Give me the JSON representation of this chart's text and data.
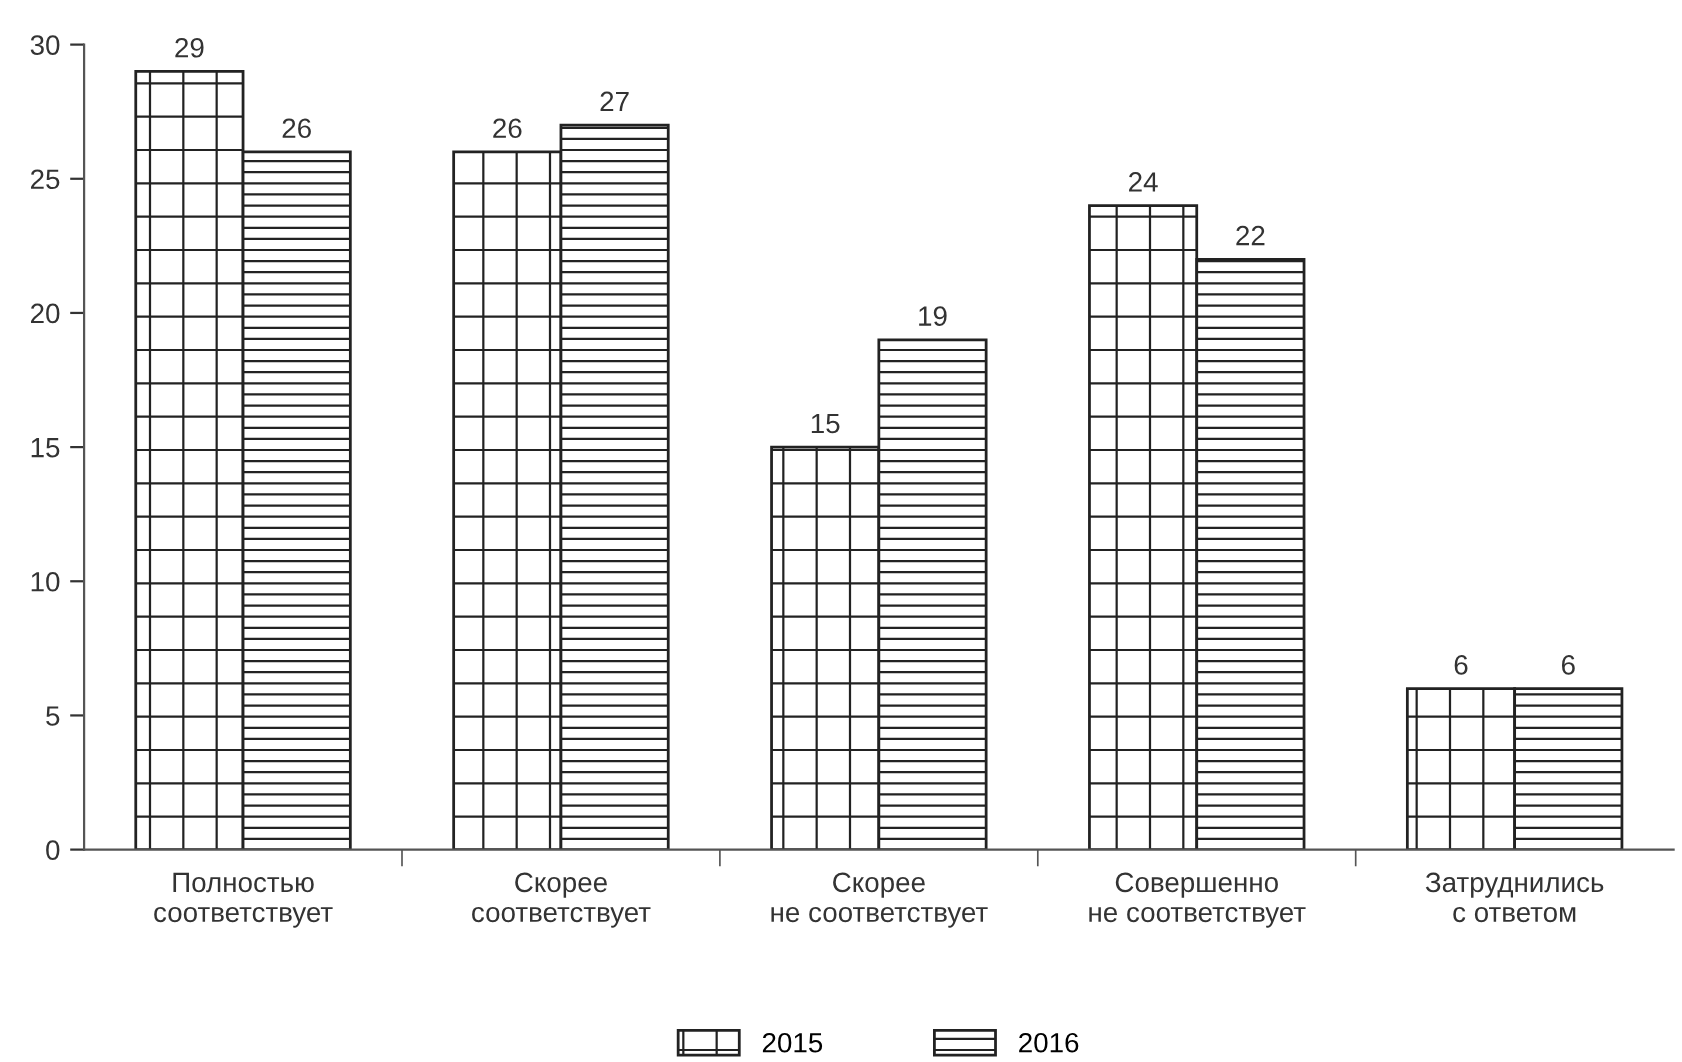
{
  "chart_data": {
    "type": "bar",
    "categories": [
      "Полностью\nсоответствует",
      "Скорее\nсоответствует",
      "Скорее\nне соответствует",
      "Совершенно\nне соответствует",
      "Затруднились\nс ответом"
    ],
    "series": [
      {
        "name": "2015",
        "color": "#222222",
        "values": [
          29,
          26,
          15,
          24,
          6
        ]
      },
      {
        "name": "2016",
        "color": "#222222",
        "values": [
          26,
          27,
          19,
          22,
          6
        ]
      }
    ],
    "ylim": [
      0,
      30
    ],
    "yticks": [
      0,
      5,
      10,
      15,
      20,
      25,
      30
    ],
    "data_labels": true,
    "grid": false,
    "legend": "bottom"
  }
}
